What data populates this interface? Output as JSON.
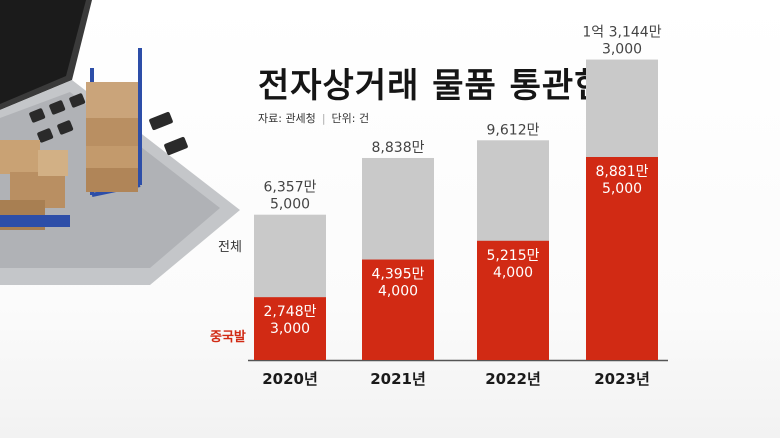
{
  "title": "전자상거래 물품 통관현황",
  "source": {
    "source_label": "자료: 관세청",
    "unit_label": "단위: 건"
  },
  "legend": {
    "total": "전체",
    "china": "중국발"
  },
  "colors": {
    "total": "#c9c9c9",
    "china": "#d12a14",
    "baseline": "#555555"
  },
  "chart_data": {
    "type": "bar",
    "categories": [
      "2020년",
      "2021년",
      "2022년",
      "2023년"
    ],
    "series": [
      {
        "name": "전체",
        "values": [
          63575000,
          88380000,
          96120000,
          131443000
        ],
        "labels": [
          [
            "6,357만",
            "5,000"
          ],
          [
            "8,838만"
          ],
          [
            "9,612만"
          ],
          [
            "1억 3,144만",
            "3,000"
          ]
        ]
      },
      {
        "name": "중국발",
        "values": [
          27483000,
          43954000,
          52154000,
          88815000
        ],
        "labels": [
          [
            "2,748만",
            "3,000"
          ],
          [
            "4,395만",
            "4,000"
          ],
          [
            "5,215만",
            "4,000"
          ],
          [
            "8,881만",
            "5,000"
          ]
        ]
      }
    ],
    "title": "전자상거래 물품 통관현황",
    "ylabel": "건",
    "ylim": [
      0,
      140000000
    ],
    "grid": false
  }
}
